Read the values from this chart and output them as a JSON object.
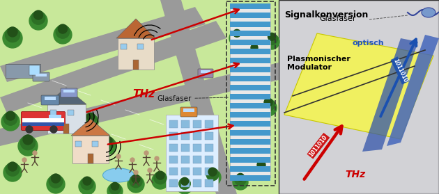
{
  "bg_left_color": "#c8e89a",
  "road_color": "#9a9a9a",
  "road_line_color": "#ffffff",
  "title_right": "Signalkonversion",
  "label_glasfaser": "Glasfaser",
  "label_optisch": "optisch",
  "label_plasmon": "Plasmonischer\nModulator",
  "label_thz_left": "THz",
  "label_thz_right": "THz",
  "label_glasfaser_left": "Glasfaser",
  "label_bit_blue": "1011010",
  "label_bit_red": "1011010",
  "yellow_color": "#f0f060",
  "blue_arrow_color": "#1a50b0",
  "red_arrow_color": "#cc0000",
  "thz_label_color": "#cc0000",
  "optisch_color": "#2255bb",
  "right_bg_color": "#c8c8cc",
  "dashed_box_color": "#333333",
  "tree_dark": "#2a6a2a",
  "tree_light": "#3a9a3a",
  "fig_width": 6.3,
  "fig_height": 2.79,
  "dpi": 100
}
